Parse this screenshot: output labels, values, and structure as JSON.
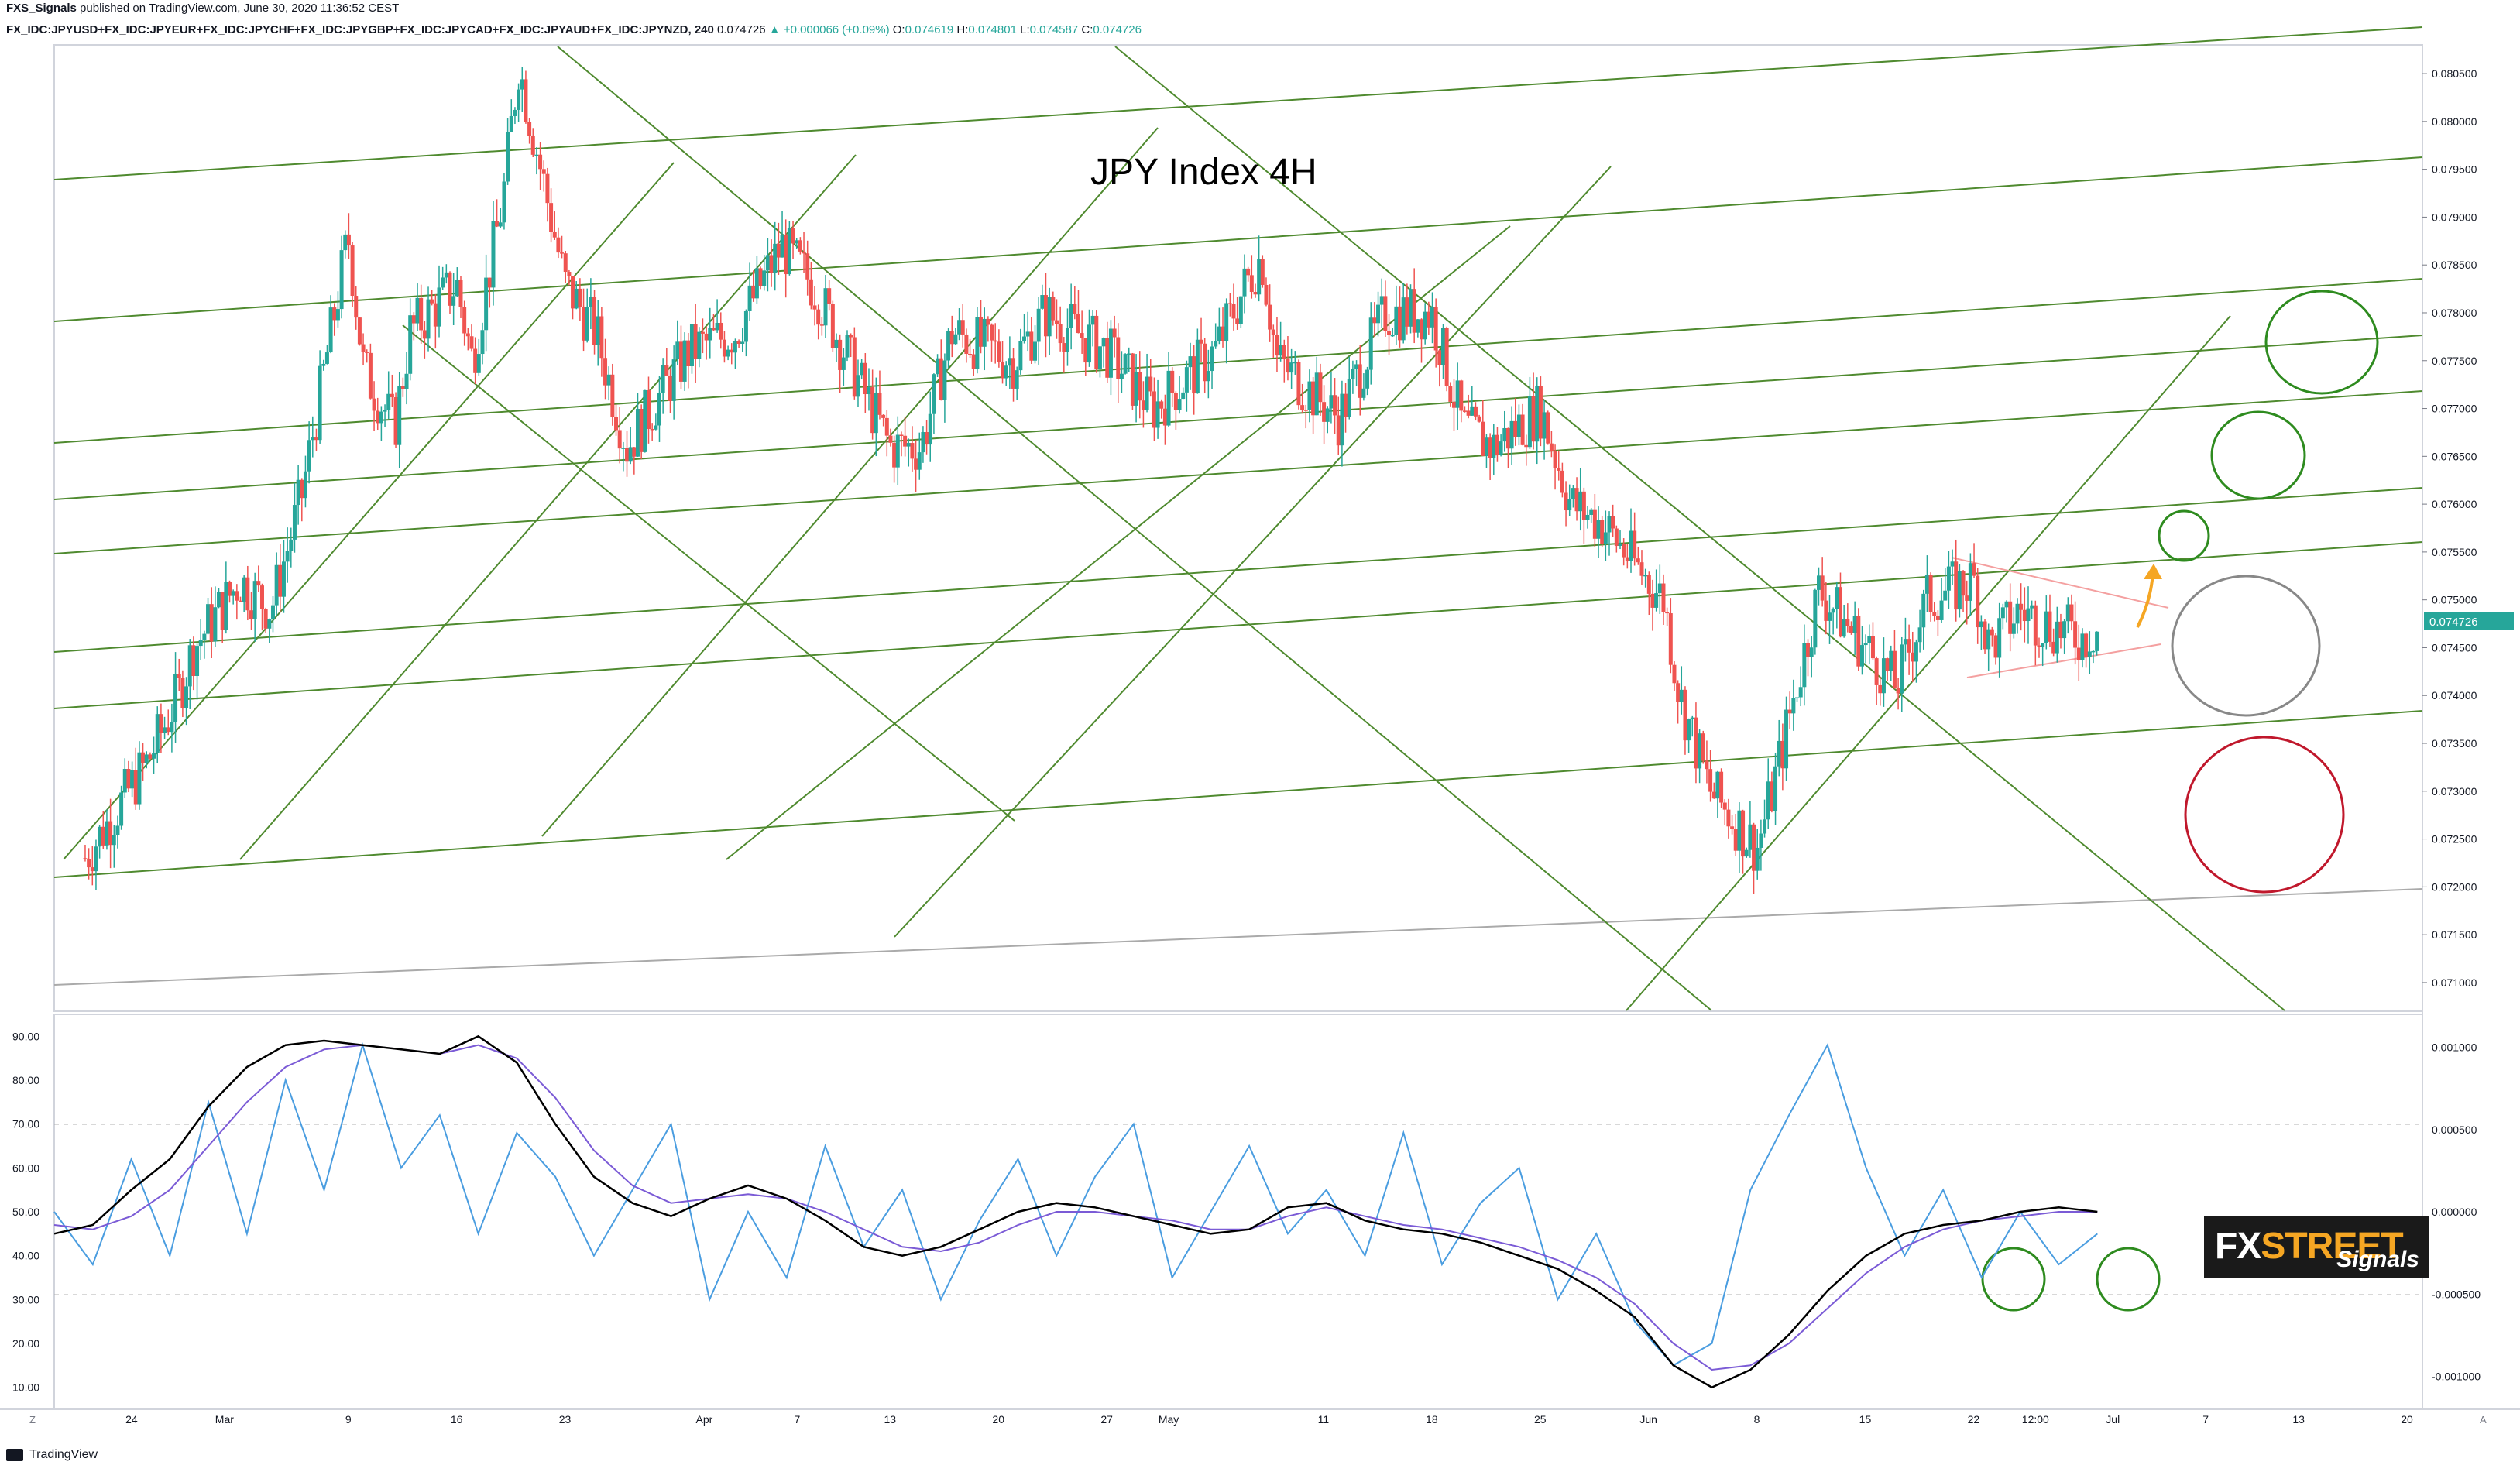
{
  "header": {
    "author": "FXS_Signals",
    "published_text": "published on TradingView.com, June 30, 2020 11:36:52 CEST",
    "symbol": "FX_IDC:JPYUSD+FX_IDC:JPYEUR+FX_IDC:JPYCHF+FX_IDC:JPYGBP+FX_IDC:JPYCAD+FX_IDC:JPYAUD+FX_IDC:JPYNZD, 240",
    "last": "0.074726",
    "change": "▲ +0.000066 (+0.09%)",
    "o_label": "O:",
    "o": "0.074619",
    "h_label": "H:",
    "h": "0.074801",
    "l_label": "L:",
    "l": "0.074587",
    "c_label": "C:",
    "c": "0.074726"
  },
  "chart_title": "JPY Index 4H",
  "price_label": "0.074726",
  "logo": {
    "brand_a": "FX",
    "brand_b": "STREET",
    "sub": "Signals"
  },
  "footer": {
    "brand": "TradingView"
  },
  "corner_z": "Z",
  "corner_a": "A",
  "colors": {
    "up": "#26a69a",
    "down": "#ef5350",
    "grid": "#5c9b3a",
    "rsi": "#4a9de0",
    "ma_slow": "#7b5bd6"
  },
  "chart_data": [
    {
      "type": "candlestick",
      "title": "JPY Index 4H",
      "ylim": [
        0.0707,
        0.0808
      ],
      "y_ticks": [
        "0.080500",
        "0.080000",
        "0.079500",
        "0.079000",
        "0.078500",
        "0.078000",
        "0.077500",
        "0.077000",
        "0.076500",
        "0.076000",
        "0.075500",
        "0.075000",
        "0.074500",
        "0.074000",
        "0.073500",
        "0.073000",
        "0.072500",
        "0.072000",
        "0.071500",
        "0.071000"
      ],
      "x_ticks": [
        "24",
        "Mar",
        "9",
        "16",
        "23",
        "Apr",
        "7",
        "13",
        "20",
        "27",
        "May",
        "11",
        "18",
        "25",
        "Jun",
        "8",
        "15",
        "22",
        "12:00",
        "Jul",
        "7",
        "13",
        "20"
      ],
      "close_path": [
        [
          "2020-02-21",
          0.0723
        ],
        [
          "2020-02-25",
          0.0733
        ],
        [
          "2020-02-27",
          0.074
        ],
        [
          "2020-02-28",
          0.0745
        ],
        [
          "2020-03-02",
          0.0752
        ],
        [
          "2020-03-04",
          0.0749
        ],
        [
          "2020-03-06",
          0.0761
        ],
        [
          "2020-03-09",
          0.0788
        ],
        [
          "2020-03-10",
          0.0774
        ],
        [
          "2020-03-12",
          0.0768
        ],
        [
          "2020-03-13",
          0.0778
        ],
        [
          "2020-03-16",
          0.0783
        ],
        [
          "2020-03-17",
          0.0775
        ],
        [
          "2020-03-19",
          0.0792
        ],
        [
          "2020-03-20",
          0.0806
        ],
        [
          "2020-03-23",
          0.0783
        ],
        [
          "2020-03-25",
          0.0778
        ],
        [
          "2020-03-27",
          0.0766
        ],
        [
          "2020-03-31",
          0.0776
        ],
        [
          "2020-04-03",
          0.0778
        ],
        [
          "2020-04-06",
          0.0787
        ],
        [
          "2020-04-08",
          0.0783
        ],
        [
          "2020-04-13",
          0.0766
        ],
        [
          "2020-04-15",
          0.0766
        ],
        [
          "2020-04-17",
          0.0778
        ],
        [
          "2020-04-21",
          0.0775
        ],
        [
          "2020-04-23",
          0.078
        ],
        [
          "2020-04-27",
          0.0776
        ],
        [
          "2020-04-30",
          0.077
        ],
        [
          "2020-05-04",
          0.0776
        ],
        [
          "2020-05-06",
          0.0783
        ],
        [
          "2020-05-07",
          0.0786
        ],
        [
          "2020-05-08",
          0.0775
        ],
        [
          "2020-05-12",
          0.0769
        ],
        [
          "2020-05-15",
          0.078
        ],
        [
          "2020-05-18",
          0.078
        ],
        [
          "2020-05-20",
          0.0768
        ],
        [
          "2020-05-22",
          0.0766
        ],
        [
          "2020-05-25",
          0.077
        ],
        [
          "2020-05-27",
          0.076
        ],
        [
          "2020-05-29",
          0.0758
        ],
        [
          "2020-06-02",
          0.075
        ],
        [
          "2020-06-03",
          0.074
        ],
        [
          "2020-06-04",
          0.0735
        ],
        [
          "2020-06-05",
          0.073
        ],
        [
          "2020-06-08",
          0.0724
        ],
        [
          "2020-06-09",
          0.073
        ],
        [
          "2020-06-10",
          0.0737
        ],
        [
          "2020-06-11",
          0.0744
        ],
        [
          "2020-06-12",
          0.0751
        ],
        [
          "2020-06-15",
          0.0745
        ],
        [
          "2020-06-17",
          0.0741
        ],
        [
          "2020-06-19",
          0.075
        ],
        [
          "2020-06-22",
          0.0752
        ],
        [
          "2020-06-23",
          0.0745
        ],
        [
          "2020-06-25",
          0.0749
        ],
        [
          "2020-06-26",
          0.0748
        ],
        [
          "2020-06-29",
          0.0746
        ],
        [
          "2020-06-30",
          0.0747
        ]
      ]
    },
    {
      "type": "line",
      "title": "",
      "ylim": [
        5,
        95
      ],
      "y_ticks": [
        "90.00",
        "80.00",
        "70.00",
        "60.00",
        "50.00",
        "40.00",
        "30.00",
        "20.00",
        "10.00"
      ],
      "y_ticks_right": [
        "0.001000",
        "0.000500",
        "0.000000",
        "-0.000500",
        "-0.001000"
      ],
      "series": [
        {
          "values": [
            45,
            47,
            55,
            62,
            74,
            83,
            88,
            89,
            88,
            87,
            86,
            90,
            84,
            70,
            58,
            52,
            49,
            53,
            56,
            53,
            48,
            42,
            40,
            42,
            46,
            50,
            52,
            51,
            49,
            47,
            45,
            46,
            51,
            52,
            48,
            46,
            45,
            43,
            40,
            37,
            32,
            26,
            15,
            10,
            14,
            22,
            32,
            40,
            45,
            47,
            48,
            50,
            51,
            50
          ]
        },
        {
          "values": [
            47,
            46,
            49,
            55,
            65,
            75,
            83,
            87,
            88,
            87,
            86,
            88,
            85,
            76,
            64,
            56,
            52,
            53,
            54,
            53,
            50,
            46,
            42,
            41,
            43,
            47,
            50,
            50,
            49,
            48,
            46,
            46,
            49,
            51,
            49,
            47,
            46,
            44,
            42,
            39,
            35,
            29,
            20,
            14,
            15,
            20,
            28,
            36,
            42,
            46,
            48,
            49,
            50,
            50
          ]
        },
        {
          "values": [
            50,
            38,
            62,
            40,
            75,
            45,
            80,
            55,
            88,
            60,
            72,
            45,
            68,
            58,
            40,
            55,
            70,
            30,
            50,
            35,
            65,
            42,
            55,
            30,
            48,
            62,
            40,
            58,
            70,
            35,
            50,
            65,
            45,
            55,
            40,
            68,
            38,
            52,
            60,
            30,
            45,
            25,
            15,
            20,
            55,
            72,
            88,
            60,
            40,
            55,
            35,
            50,
            38,
            45
          ]
        }
      ]
    }
  ]
}
